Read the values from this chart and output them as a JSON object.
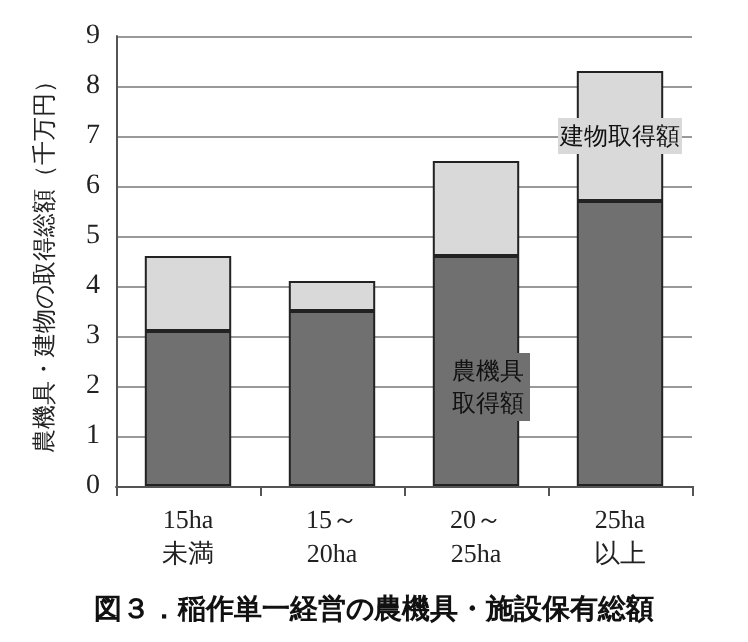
{
  "chart_data": {
    "type": "bar",
    "title": "図３．稲作単一経営の農機具・施設保有総額",
    "ylabel": "農機具・建物の取得総額（千万円）",
    "categories": [
      "15ha\n未満",
      "15～\n20ha",
      "20～\n25ha",
      "25ha\n以上"
    ],
    "stacked": true,
    "series": [
      {
        "name": "農機具取得額",
        "color": "#707070",
        "values": [
          3.1,
          3.5,
          4.6,
          5.7
        ]
      },
      {
        "name": "建物取得額",
        "color": "#d9d9d9",
        "values": [
          1.5,
          0.6,
          1.9,
          2.6
        ]
      }
    ],
    "ylim": [
      0,
      9
    ],
    "yticks": [
      0,
      1,
      2,
      3,
      4,
      5,
      6,
      7,
      8,
      9
    ],
    "grid": "y",
    "legend": false
  }
}
